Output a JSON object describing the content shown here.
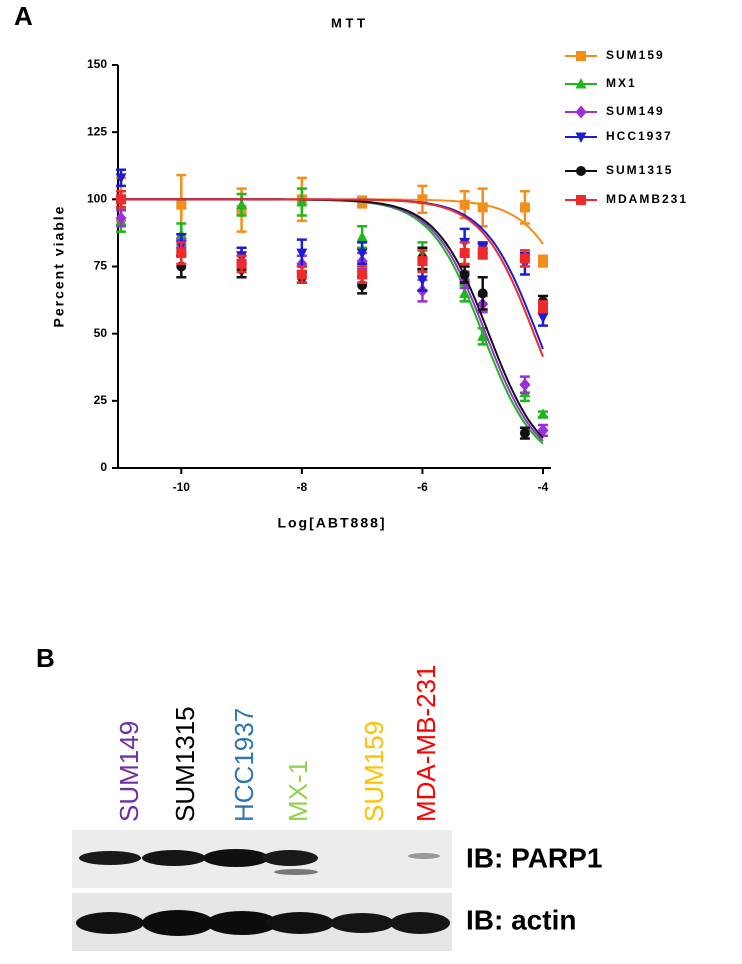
{
  "chart_data": {
    "type": "scatter",
    "title": "M T T",
    "x_label": "Log[ABT888]",
    "y_label": "Percent viable",
    "xlim": [
      -11,
      -4
    ],
    "ylim": [
      0,
      150
    ],
    "xticks": [
      -10,
      -8,
      -6,
      -4
    ],
    "yticks": [
      0,
      25,
      50,
      75,
      100,
      125,
      150
    ],
    "x": [
      -11,
      -10,
      -9,
      -8,
      -7,
      -6,
      -5.3,
      -5,
      -4.3,
      -4
    ],
    "legend": "top-right",
    "series": [
      {
        "name": "SUM159",
        "color": "#f28e1c",
        "marker": "square",
        "values": [
          100,
          98,
          96,
          100,
          99,
          100,
          98,
          97,
          97,
          77
        ],
        "errors": [
          8,
          11,
          8,
          8,
          2,
          5,
          5,
          7,
          6,
          2
        ],
        "fit": {
          "top": 100,
          "bottom": 0,
          "log_ic50": -3.3,
          "hill": 1
        }
      },
      {
        "name": "MX1",
        "color": "#1fb51f",
        "marker": "triangle",
        "values": [
          92,
          87,
          98,
          99,
          86,
          80,
          65,
          49,
          28,
          20
        ],
        "errors": [
          4,
          4,
          4,
          5,
          4,
          4,
          3,
          3,
          3,
          1
        ],
        "fit": {
          "top": 100,
          "bottom": 0,
          "log_ic50": -5,
          "hill": 1
        }
      },
      {
        "name": "SUM149",
        "color": "#9b30d9",
        "marker": "diamond",
        "values": [
          93,
          82,
          79,
          76,
          77,
          66,
          70,
          61,
          31,
          14
        ],
        "errors": [
          3,
          3,
          3,
          3,
          3,
          4,
          3,
          3,
          3,
          2
        ],
        "fit": {
          "top": 100,
          "bottom": 0,
          "log_ic50": -4.95,
          "hill": 1
        }
      },
      {
        "name": "HCC1937",
        "color": "#1c1cd6",
        "marker": "triangle-down",
        "values": [
          108,
          83,
          79,
          80,
          80,
          70,
          84,
          82,
          76,
          56
        ],
        "errors": [
          3,
          4,
          3,
          5,
          4,
          4,
          5,
          2,
          4,
          3
        ],
        "fit": {
          "top": 100,
          "bottom": 0,
          "log_ic50": -4.1,
          "hill": 1
        }
      },
      {
        "name": "SUM1315",
        "color": "#111111",
        "marker": "circle",
        "values": [
          100,
          75,
          74,
          71,
          68,
          78,
          72,
          65,
          13,
          62
        ],
        "errors": [
          3,
          4,
          3,
          2,
          3,
          4,
          3,
          6,
          2,
          2
        ],
        "fit": {
          "top": 100,
          "bottom": 0,
          "log_ic50": -4.9,
          "hill": 1
        }
      },
      {
        "name": "MDAMB231",
        "color": "#ee2a2a",
        "marker": "square",
        "values": [
          100,
          80,
          76,
          72,
          72,
          77,
          80,
          80,
          78,
          60
        ],
        "errors": [
          3,
          4,
          3,
          3,
          3,
          4,
          4,
          2,
          3,
          2
        ],
        "fit": {
          "top": 100,
          "bottom": 0,
          "log_ic50": -4.15,
          "hill": 1
        }
      }
    ]
  },
  "panels": [
    "A",
    "B"
  ],
  "blot": {
    "lanes": [
      {
        "label": "SUM149",
        "color": "#7030a0"
      },
      {
        "label": "SUM1315",
        "color": "#000000"
      },
      {
        "label": "HCC1937",
        "color": "#2e75b6"
      },
      {
        "label": "MX-1",
        "color": "#92d050"
      },
      {
        "label": "SUM159",
        "color": "#ffc000"
      },
      {
        "label": "MDA-MB-231",
        "color": "#ff0000"
      }
    ],
    "rows": [
      "IB: PARP1",
      "IB: actin"
    ]
  }
}
